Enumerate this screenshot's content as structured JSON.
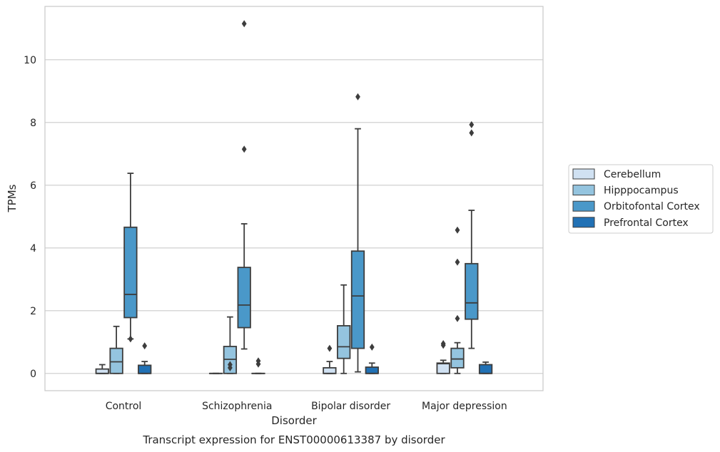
{
  "chart_data": {
    "type": "box",
    "title": "Transcript expression for ENST00000613387 by disorder",
    "xlabel": "Disorder",
    "ylabel": "TPMs",
    "ylim": [
      -0.55,
      11.7
    ],
    "yticks": [
      0,
      2,
      4,
      6,
      8,
      10
    ],
    "grid": "horizontal",
    "legend_position": "right",
    "categories": [
      "Control",
      "Schizophrenia",
      "Bipolar disorder",
      "Major depression"
    ],
    "series": [
      {
        "name": "Cerebellum",
        "color": "#d0e1f2",
        "boxes": [
          {
            "category": "Control",
            "min": 0.0,
            "q1": 0.0,
            "median": 0.0,
            "q3": 0.14,
            "max": 0.28,
            "outliers": []
          },
          {
            "category": "Schizophrenia",
            "min": 0.0,
            "q1": 0.0,
            "median": 0.0,
            "q3": 0.0,
            "max": 0.0,
            "outliers": []
          },
          {
            "category": "Bipolar disorder",
            "min": 0.0,
            "q1": 0.0,
            "median": 0.0,
            "q3": 0.18,
            "max": 0.38,
            "outliers": [
              0.8
            ]
          },
          {
            "category": "Major depression",
            "min": 0.0,
            "q1": 0.0,
            "median": 0.31,
            "q3": 0.33,
            "max": 0.42,
            "outliers": [
              0.9,
              0.95
            ]
          }
        ]
      },
      {
        "name": "Hipppocampus",
        "color": "#94c4df",
        "boxes": [
          {
            "category": "Control",
            "min": 0.0,
            "q1": 0.0,
            "median": 0.37,
            "q3": 0.8,
            "max": 1.5,
            "outliers": []
          },
          {
            "category": "Schizophrenia",
            "min": 0.0,
            "q1": 0.0,
            "median": 0.45,
            "q3": 0.86,
            "max": 1.8,
            "outliers": [
              0.18,
              0.28
            ]
          },
          {
            "category": "Bipolar disorder",
            "min": 0.0,
            "q1": 0.48,
            "median": 0.85,
            "q3": 1.52,
            "max": 2.82,
            "outliers": []
          },
          {
            "category": "Major depression",
            "min": 0.0,
            "q1": 0.18,
            "median": 0.46,
            "q3": 0.8,
            "max": 0.98,
            "outliers": [
              1.75,
              3.55,
              4.57
            ]
          }
        ]
      },
      {
        "name": "Orbitofontal Cortex",
        "color": "#4a98c9",
        "boxes": [
          {
            "category": "Control",
            "min": 1.1,
            "q1": 1.78,
            "median": 2.52,
            "q3": 4.66,
            "max": 6.38,
            "outliers": [
              1.1
            ]
          },
          {
            "category": "Schizophrenia",
            "min": 0.78,
            "q1": 1.46,
            "median": 2.18,
            "q3": 3.38,
            "max": 4.77,
            "outliers": [
              7.15,
              11.15
            ]
          },
          {
            "category": "Bipolar disorder",
            "min": 0.05,
            "q1": 0.8,
            "median": 2.47,
            "q3": 3.9,
            "max": 7.8,
            "outliers": [
              8.82
            ]
          },
          {
            "category": "Major depression",
            "min": 0.8,
            "q1": 1.73,
            "median": 2.25,
            "q3": 3.5,
            "max": 5.2,
            "outliers": [
              7.67,
              7.93
            ]
          }
        ]
      },
      {
        "name": "Prefrontal Cortex",
        "color": "#2171b5",
        "boxes": [
          {
            "category": "Control",
            "min": 0.0,
            "q1": 0.0,
            "median": 0.0,
            "q3": 0.26,
            "max": 0.38,
            "outliers": [
              0.88
            ]
          },
          {
            "category": "Schizophrenia",
            "min": 0.0,
            "q1": 0.0,
            "median": 0.0,
            "q3": 0.0,
            "max": 0.0,
            "outliers": [
              0.3,
              0.4
            ]
          },
          {
            "category": "Bipolar disorder",
            "min": 0.0,
            "q1": 0.0,
            "median": 0.0,
            "q3": 0.2,
            "max": 0.33,
            "outliers": [
              0.84
            ]
          },
          {
            "category": "Major depression",
            "min": 0.0,
            "q1": 0.0,
            "median": 0.0,
            "q3": 0.28,
            "max": 0.36,
            "outliers": []
          }
        ]
      }
    ]
  }
}
